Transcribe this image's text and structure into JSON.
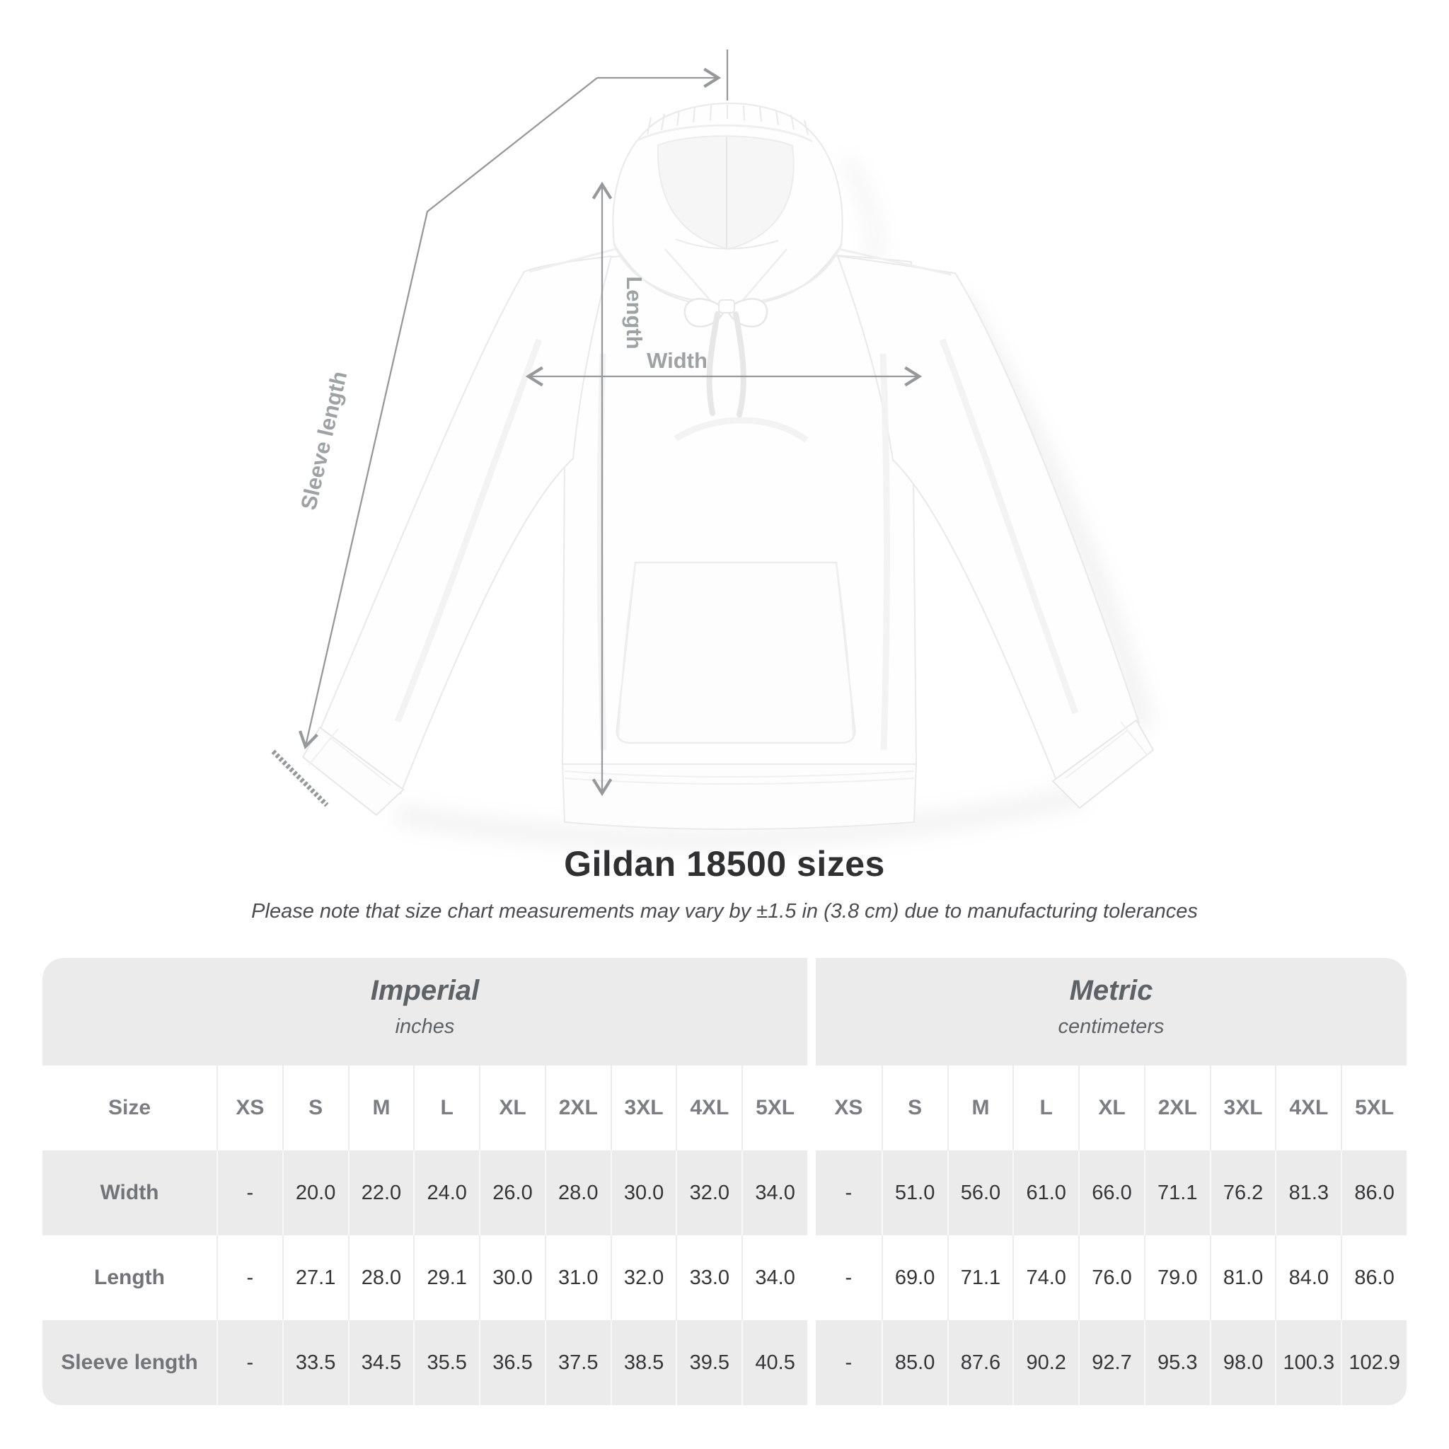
{
  "diagram": {
    "labels": {
      "width": "Width",
      "length": "Length",
      "sleeve": "Sleeve length"
    }
  },
  "title": "Gildan 18500 sizes",
  "note": "Please note that size chart measurements may vary by ±1.5 in (3.8 cm) due to manufacturing tolerances",
  "table": {
    "size_label": "Size",
    "groups": [
      {
        "name": "Imperial",
        "unit": "inches"
      },
      {
        "name": "Metric",
        "unit": "centimeters"
      }
    ],
    "columns": [
      "XS",
      "S",
      "M",
      "L",
      "XL",
      "2XL",
      "3XL",
      "4XL",
      "5XL"
    ],
    "rows": [
      {
        "label": "Width",
        "imperial": [
          "-",
          "20.0",
          "22.0",
          "24.0",
          "26.0",
          "28.0",
          "30.0",
          "32.0",
          "34.0"
        ],
        "metric": [
          "-",
          "51.0",
          "56.0",
          "61.0",
          "66.0",
          "71.1",
          "76.2",
          "81.3",
          "86.0"
        ]
      },
      {
        "label": "Length",
        "imperial": [
          "-",
          "27.1",
          "28.0",
          "29.1",
          "30.0",
          "31.0",
          "32.0",
          "33.0",
          "34.0"
        ],
        "metric": [
          "-",
          "69.0",
          "71.1",
          "74.0",
          "76.0",
          "79.0",
          "81.0",
          "84.0",
          "86.0"
        ]
      },
      {
        "label": "Sleeve length",
        "imperial": [
          "-",
          "33.5",
          "34.5",
          "35.5",
          "36.5",
          "37.5",
          "38.5",
          "39.5",
          "40.5"
        ],
        "metric": [
          "-",
          "85.0",
          "87.6",
          "90.2",
          "92.7",
          "95.3",
          "98.0",
          "100.3",
          "102.9"
        ]
      }
    ]
  }
}
